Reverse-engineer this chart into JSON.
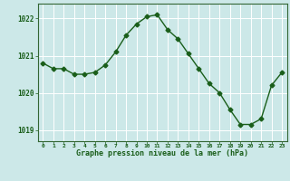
{
  "x": [
    0,
    1,
    2,
    3,
    4,
    5,
    6,
    7,
    8,
    9,
    10,
    11,
    12,
    13,
    14,
    15,
    16,
    17,
    18,
    19,
    20,
    21,
    22,
    23
  ],
  "y": [
    1020.8,
    1020.65,
    1020.65,
    1020.5,
    1020.5,
    1020.55,
    1020.75,
    1021.1,
    1021.55,
    1021.85,
    1022.05,
    1022.1,
    1021.7,
    1021.45,
    1021.05,
    1020.65,
    1020.25,
    1020.0,
    1019.55,
    1019.15,
    1019.15,
    1019.3,
    1020.2,
    1020.55
  ],
  "ylim": [
    1018.7,
    1022.4
  ],
  "yticks": [
    1019,
    1020,
    1021,
    1022
  ],
  "xticks": [
    0,
    1,
    2,
    3,
    4,
    5,
    6,
    7,
    8,
    9,
    10,
    11,
    12,
    13,
    14,
    15,
    16,
    17,
    18,
    19,
    20,
    21,
    22,
    23
  ],
  "line_color": "#1a5e1a",
  "marker": "D",
  "marker_size": 2.5,
  "bg_color": "#cce8e8",
  "grid_color": "#ffffff",
  "xlabel": "Graphe pression niveau de la mer (hPa)",
  "xlabel_color": "#1a5e1a",
  "tick_color": "#1a5e1a",
  "spine_color": "#336633",
  "line_width": 1.0
}
